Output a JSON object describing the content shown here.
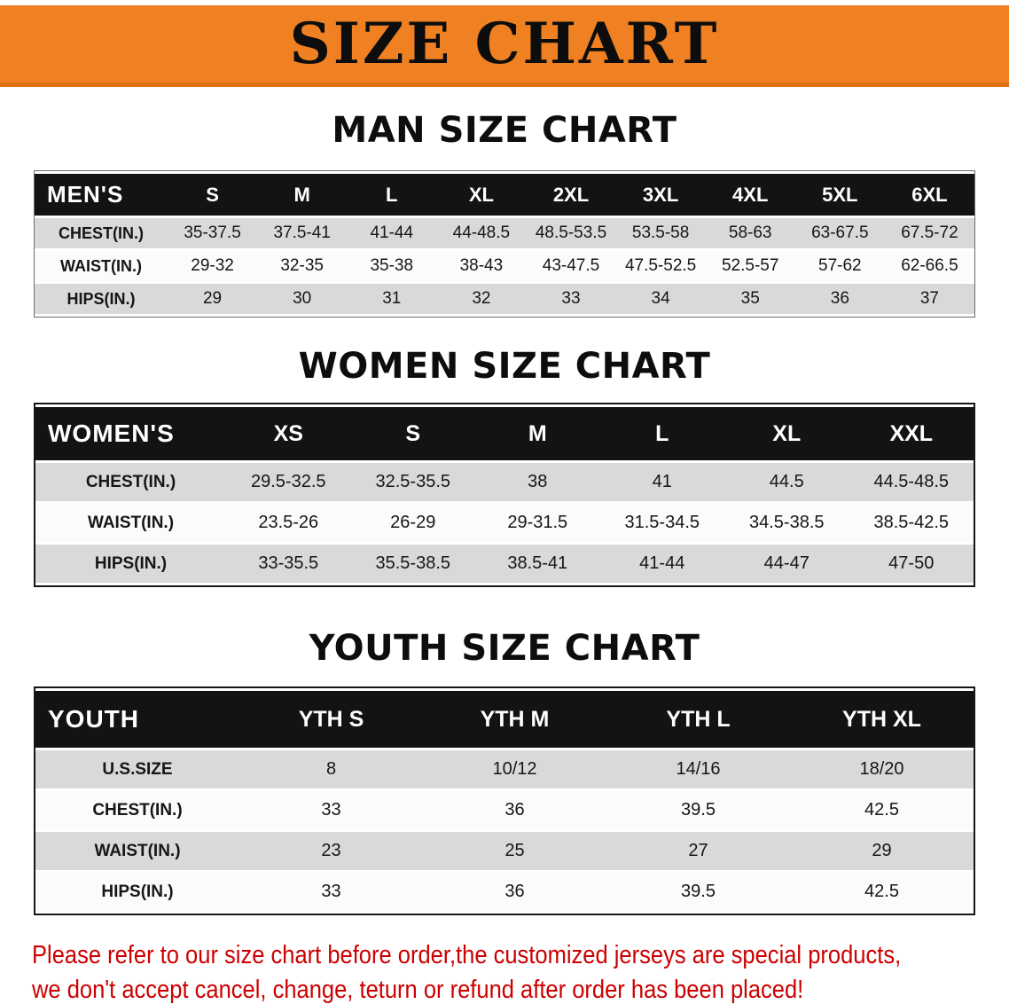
{
  "banner": {
    "title": "SIZE CHART",
    "bg_color": "#F08122"
  },
  "sections": [
    {
      "heading": "MAN SIZE CHART",
      "label": "MEN'S",
      "columns": [
        "S",
        "M",
        "L",
        "XL",
        "2XL",
        "3XL",
        "4XL",
        "5XL",
        "6XL"
      ],
      "rows": [
        {
          "label": "CHEST(IN.)",
          "values": [
            "35-37.5",
            "37.5-41",
            "41-44",
            "44-48.5",
            "48.5-53.5",
            "53.5-58",
            "58-63",
            "63-67.5",
            "67.5-72"
          ]
        },
        {
          "label": "WAIST(IN.)",
          "values": [
            "29-32",
            "32-35",
            "35-38",
            "38-43",
            "43-47.5",
            "47.5-52.5",
            "52.5-57",
            "57-62",
            "62-66.5"
          ]
        },
        {
          "label": "HIPS(IN.)",
          "values": [
            "29",
            "30",
            "31",
            "32",
            "33",
            "34",
            "35",
            "36",
            "37"
          ]
        }
      ]
    },
    {
      "heading": "WOMEN SIZE CHART",
      "label": "WOMEN'S",
      "columns": [
        "XS",
        "S",
        "M",
        "L",
        "XL",
        "XXL"
      ],
      "rows": [
        {
          "label": "CHEST(IN.)",
          "values": [
            "29.5-32.5",
            "32.5-35.5",
            "38",
            "41",
            "44.5",
            "44.5-48.5"
          ]
        },
        {
          "label": "WAIST(IN.)",
          "values": [
            "23.5-26",
            "26-29",
            "29-31.5",
            "31.5-34.5",
            "34.5-38.5",
            "38.5-42.5"
          ]
        },
        {
          "label": "HIPS(IN.)",
          "values": [
            "33-35.5",
            "35.5-38.5",
            "38.5-41",
            "41-44",
            "44-47",
            "47-50"
          ]
        }
      ]
    },
    {
      "heading": "YOUTH SIZE CHART",
      "label": "YOUTH",
      "columns": [
        "YTH S",
        "YTH M",
        "YTH L",
        "YTH XL"
      ],
      "rows": [
        {
          "label": "U.S.SIZE",
          "values": [
            "8",
            "10/12",
            "14/16",
            "18/20"
          ]
        },
        {
          "label": "CHEST(IN.)",
          "values": [
            "33",
            "36",
            "39.5",
            "42.5"
          ]
        },
        {
          "label": "WAIST(IN.)",
          "values": [
            "23",
            "25",
            "27",
            "29"
          ]
        },
        {
          "label": "HIPS(IN.)",
          "values": [
            "33",
            "36",
            "39.5",
            "42.5"
          ]
        }
      ]
    }
  ],
  "disclaimer": {
    "line1": "Please refer to our size chart before order,the customized jerseys are special products,",
    "line2": "we don't accept cancel, change, teturn or refund after order has been placed!",
    "color": "#CC0000"
  }
}
